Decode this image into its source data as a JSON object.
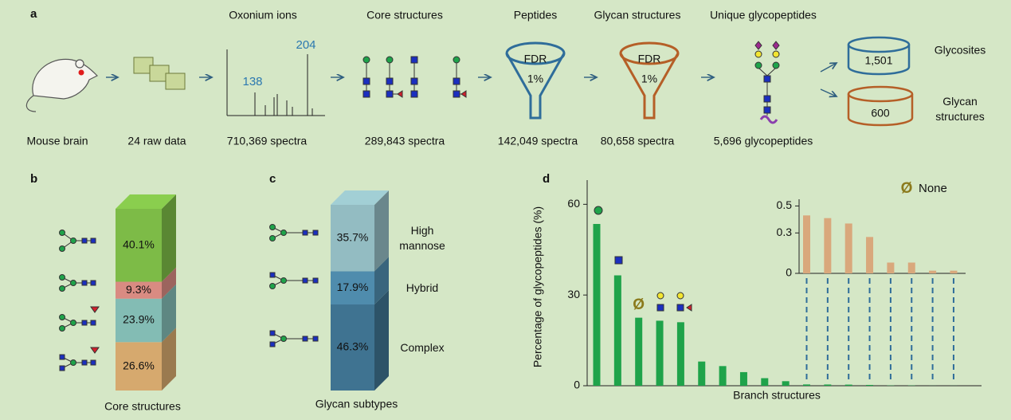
{
  "panel_letters": {
    "a": "a",
    "b": "b",
    "c": "c",
    "d": "d"
  },
  "workflow": {
    "steps_top": [
      "Oxonium ions",
      "Core structures",
      "Peptides",
      "Glycan structures",
      "Unique glycopeptides"
    ],
    "counts": [
      "Mouse brain",
      "24 raw data",
      "710,369 spectra",
      "289,843 spectra",
      "142,049 spectra",
      "80,658 spectra",
      "5,696 glycopeptides"
    ],
    "spectrum_peaks": [
      "204",
      "138"
    ],
    "fdr": {
      "label": "FDR",
      "rate": "1%"
    },
    "outputs": [
      {
        "count": "1,501",
        "label": "Glycosites"
      },
      {
        "count": "600",
        "label": "Glycan structures"
      }
    ]
  },
  "chart_data": [
    {
      "type": "stacked_bar",
      "xlabel": "Core structures",
      "values": [
        26.6,
        23.9,
        9.3,
        40.1
      ],
      "value_labels": [
        "26.6%",
        "23.9%",
        "9.3%",
        "40.1%"
      ],
      "colors": [
        "#d6a96e",
        "#83bcb4",
        "#d98b82",
        "#7dbb47"
      ]
    },
    {
      "type": "stacked_bar",
      "xlabel": "Glycan subtypes",
      "categories": [
        "Complex",
        "Hybrid",
        "High mannose"
      ],
      "values": [
        46.3,
        17.9,
        35.7
      ],
      "value_labels": [
        "46.3%",
        "17.9%",
        "35.7%"
      ],
      "colors": [
        "#3f7391",
        "#4f8cad",
        "#93bcc2"
      ]
    },
    {
      "type": "bar",
      "ylabel": "Percentage of glycopeptides (%)",
      "xlabel": "Branch structures",
      "values": [
        53.5,
        36.5,
        22.5,
        21.5,
        21,
        8,
        6.5,
        4.5,
        2.5,
        1.5,
        0.43,
        0.41,
        0.37,
        0.27,
        0.08,
        0.08,
        0.02,
        0.02
      ],
      "color": "#1fa34a",
      "ylim": [
        0,
        68
      ],
      "yticks": [
        0,
        30,
        60
      ]
    },
    {
      "type": "bar",
      "values": [
        0.43,
        0.41,
        0.37,
        0.27,
        0.08,
        0.08,
        0.02,
        0.02
      ],
      "color": "#d9a87c",
      "ylim": [
        0,
        0.55
      ],
      "yticks": [
        0,
        0.3,
        0.5
      ],
      "legend": {
        "symbol": "Ø",
        "label": "None"
      }
    }
  ]
}
